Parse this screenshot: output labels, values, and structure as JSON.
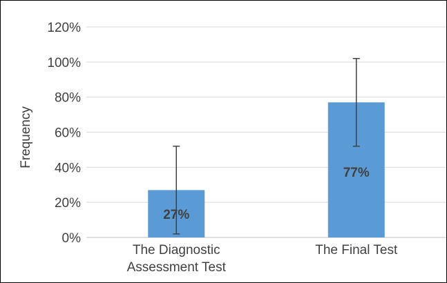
{
  "chart_data": {
    "type": "bar",
    "title": "",
    "xlabel": "",
    "ylabel": "Frequency",
    "categories": [
      [
        "The Diagnostic",
        "Assessment Test"
      ],
      [
        "The Final Test"
      ]
    ],
    "values": [
      27,
      77
    ],
    "data_labels": [
      "27%",
      "77%"
    ],
    "error_bars": [
      {
        "low": 2,
        "high": 52
      },
      {
        "low": 52,
        "high": 102
      }
    ],
    "ylim": [
      0,
      120
    ],
    "yticks": [
      0,
      20,
      40,
      60,
      80,
      100,
      120
    ],
    "ytick_labels": [
      "0%",
      "20%",
      "40%",
      "60%",
      "80%",
      "100%",
      "120%"
    ],
    "grid": true,
    "legend": "none",
    "colors": {
      "bar": "#5B9BD5",
      "grid": "#D9D9D9",
      "axis": "#BFBFBF",
      "error": "#404040",
      "text": "#404040"
    }
  }
}
